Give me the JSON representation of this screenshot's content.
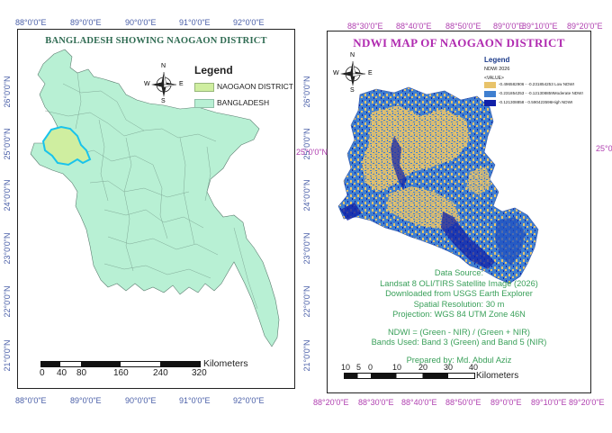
{
  "left_map": {
    "title": "BANGLADESH SHOWING NAOGAON DISTRICT",
    "lon_ticks": [
      "88°0'0\"E",
      "89°0'0\"E",
      "90°0'0\"E",
      "91°0'0\"E",
      "92°0'0\"E"
    ],
    "lat_ticks": [
      "26°0'0\"N",
      "25°0'0\"N",
      "24°0'0\"N",
      "23°0'0\"N",
      "22°0'0\"N",
      "21°0'0\"N"
    ],
    "legend": {
      "title": "Legend",
      "items": [
        {
          "label": "NAOGAON DISTRICT",
          "color": "#cfeea0"
        },
        {
          "label": "BANGLADESH",
          "color": "#b8f0d4"
        }
      ]
    },
    "scale": {
      "unit": "Kilometers",
      "labels": [
        "0",
        "40",
        "80",
        "160",
        "240",
        "320"
      ]
    },
    "colors": {
      "land": "#b8f0d4",
      "naogaon": "#cfeea0",
      "naogaon_border": "#19c3ec",
      "tick_text": "#4a5fa8"
    }
  },
  "right_map": {
    "title": "NDWI MAP OF NAOGAON DISTRICT",
    "lon_ticks": [
      "88°20'0\"E",
      "88°30'0\"E",
      "88°40'0\"E",
      "88°50'0\"E",
      "89°0'0\"E",
      "89°10'0\"E",
      "89°20'0\"E"
    ],
    "lat_tick": "25°0'0\"N",
    "lat_tick_right": "25°0",
    "legend": {
      "title": "Legend",
      "layer": "NDWI 2026",
      "value_label": "<VALUE>",
      "items": [
        {
          "label": "-0.496582906 - -0.231854253 Low NDWI",
          "color": "#e8c36a"
        },
        {
          "label": "-0.231854253 - -0.121308859Moderate NDWI",
          "color": "#3f7fd0"
        },
        {
          "label": "-0.121308858 - 0.590423596High NDWI",
          "color": "#1020a8"
        }
      ]
    },
    "info_lines": [
      "Data Source:",
      "Landsat 8 OLI/TIRS Satellite Image (2026)",
      "Downloaded from USGS Earth Explorer",
      "Spatial Resolution: 30 m",
      "Projection: WGS 84 UTM Zone 46N",
      "",
      "NDWI = (Green - NIR) / (Green + NIR)",
      "Bands Used: Band 3 (Green) and Band 5 (NIR)",
      "",
      "Prepared by: Md. Abdul Aziz"
    ],
    "scale": {
      "unit": "Kilometers",
      "labels": [
        "10",
        "5",
        "0",
        "10",
        "20",
        "30",
        "40"
      ]
    },
    "colors": {
      "tick_text": "#b040b0",
      "title": "#b02ab0",
      "info_text": "#3aa05a"
    }
  },
  "north_arrow": {
    "n": "N",
    "s": "S",
    "e": "E",
    "w": "W"
  }
}
